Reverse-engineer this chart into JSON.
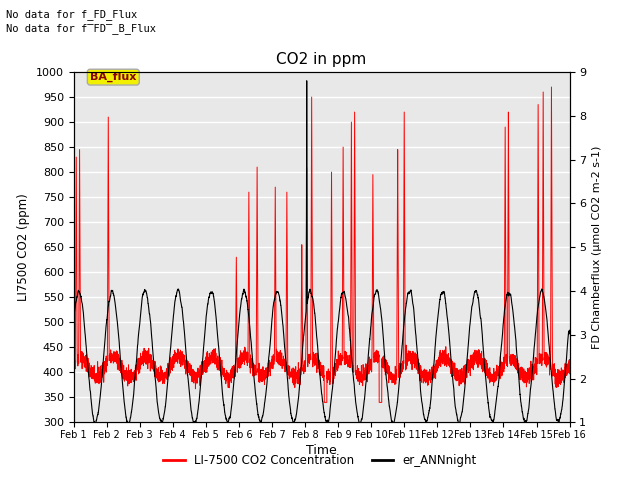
{
  "title": "CO2 in ppm",
  "xlabel": "Time",
  "ylabel_left": "LI7500 CO2 (ppm)",
  "ylabel_right": "FD Chamberflux (μmol CO2 m-2 s-1)",
  "ylim_left": [
    300,
    1000
  ],
  "ylim_right": [
    1.0,
    9.0
  ],
  "xlim": [
    0,
    15
  ],
  "xtick_labels": [
    "Feb 1",
    "Feb 2",
    "Feb 3",
    "Feb 4",
    "Feb 5",
    "Feb 6",
    "Feb 7",
    "Feb 8",
    "Feb 9",
    "Feb 10",
    "Feb 11",
    "Feb 12",
    "Feb 13",
    "Feb 14",
    "Feb 15",
    "Feb 16"
  ],
  "text_no_data_1": "No data for f_FD_Flux",
  "text_no_data_2": "No data for f̅FD̅_B_Flux",
  "ba_flux_label": "BA_flux",
  "legend_line1_label": "LI-7500 CO2 Concentration",
  "legend_line2_label": "er_ANNnight",
  "bg_color": "#e8e8e8",
  "line1_color": "red",
  "line2_color": "black",
  "grid_color": "white",
  "yticks_left": [
    300,
    350,
    400,
    450,
    500,
    550,
    600,
    650,
    700,
    750,
    800,
    850,
    900,
    950,
    1000
  ],
  "yticks_right": [
    1.0,
    2.0,
    3.0,
    4.0,
    5.0,
    6.0,
    7.0,
    8.0,
    9.0
  ]
}
